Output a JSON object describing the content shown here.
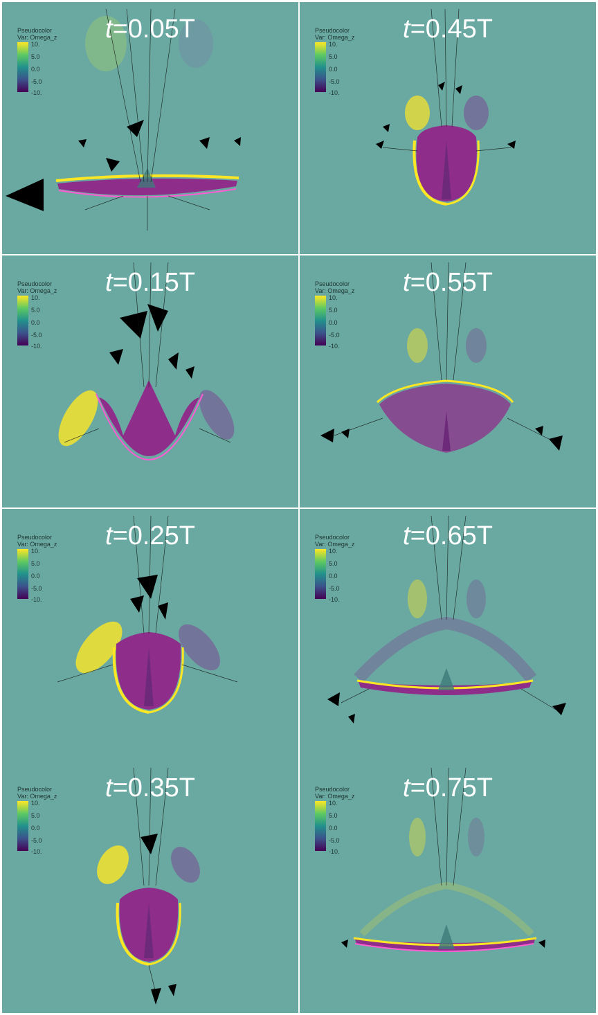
{
  "legend": {
    "title": "Pseudocolor",
    "var": "Var: Omega_z",
    "ticks": [
      "10.",
      "5.0",
      "0.0",
      "-5.0",
      "-10."
    ]
  },
  "colormap": {
    "background": "#6aa9a1",
    "positive": "#fde725",
    "negative": "#7b3f91",
    "body": "#8f2d8a",
    "arrows": "#000000"
  },
  "panels": [
    {
      "t": "t",
      "suffix": "=0.05T"
    },
    {
      "t": "t",
      "suffix": "=0.45T"
    },
    {
      "t": "t",
      "suffix": "=0.15T"
    },
    {
      "t": "t",
      "suffix": "=0.55T"
    },
    {
      "t": "t",
      "suffix": "=0.25T"
    },
    {
      "t": "t",
      "suffix": "=0.65T"
    },
    {
      "t": "t",
      "suffix": "=0.35T"
    },
    {
      "t": "t",
      "suffix": "=0.75T"
    }
  ]
}
